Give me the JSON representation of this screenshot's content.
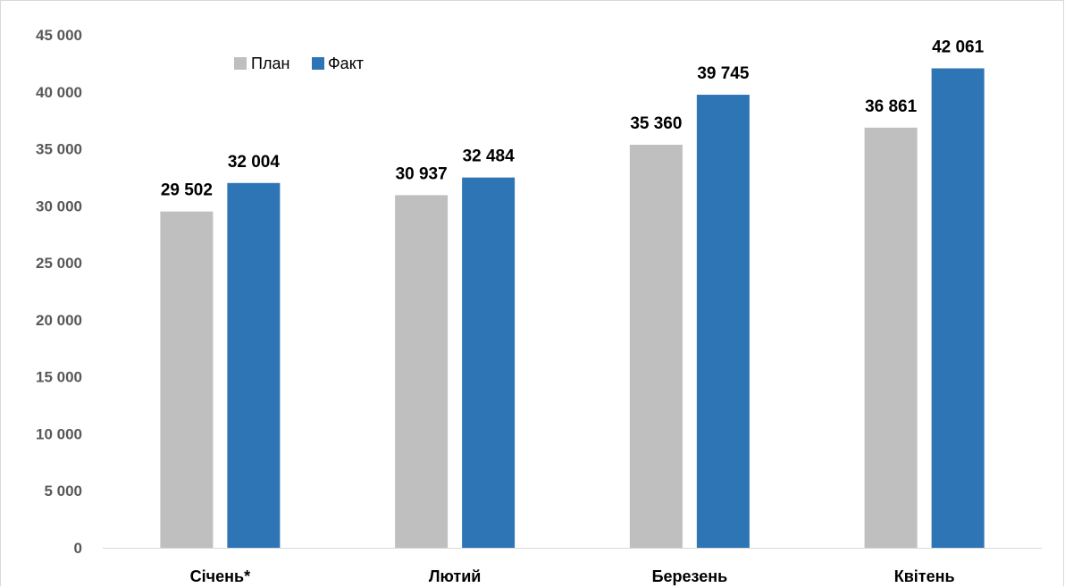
{
  "chart_data": {
    "type": "bar",
    "categories": [
      "Січень*",
      "Лютий",
      "Березень",
      "Квітень"
    ],
    "series": [
      {
        "name": "План",
        "color": "#bfbfbf",
        "values": [
          29502,
          30937,
          35360,
          36861
        ],
        "labels": [
          "29 502",
          "30 937",
          "35 360",
          "36 861"
        ]
      },
      {
        "name": "Факт",
        "color": "#2e75b6",
        "values": [
          32004,
          32484,
          39745,
          42061
        ],
        "labels": [
          "32 004",
          "32 484",
          "39 745",
          "42 061"
        ]
      }
    ],
    "ylim": [
      0,
      45000
    ],
    "yticks": [
      0,
      5000,
      10000,
      15000,
      20000,
      25000,
      30000,
      35000,
      40000,
      45000
    ],
    "ytick_labels": [
      "0",
      "5 000",
      "10 000",
      "15 000",
      "20 000",
      "25 000",
      "30 000",
      "35 000",
      "40 000",
      "45 000"
    ],
    "grid": false,
    "legend_position": "top-left"
  }
}
